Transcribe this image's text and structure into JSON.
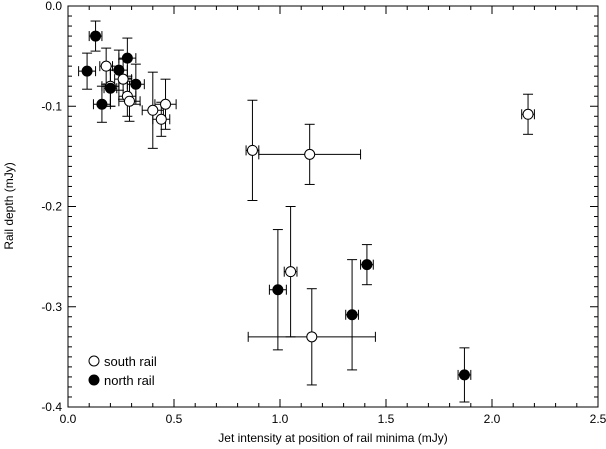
{
  "chart_data": {
    "type": "scatter",
    "xlabel": "Jet intensity at position of rail minima (mJy)",
    "ylabel": "Rail depth (mJy)",
    "xlim": [
      0.0,
      2.5
    ],
    "ylim": [
      -0.4,
      0.0
    ],
    "xticks": [
      0.0,
      0.5,
      1.0,
      1.5,
      2.0,
      2.5
    ],
    "xtick_labels": [
      "0.0",
      "0.5",
      "1.0",
      "1.5",
      "2.0",
      "2.5"
    ],
    "yticks": [
      0.0,
      -0.1,
      -0.2,
      -0.3,
      -0.4
    ],
    "ytick_labels": [
      "0.0",
      "-0.1",
      "-0.2",
      "-0.3",
      "-0.4"
    ],
    "grid": false,
    "legend_position": "bottom-left",
    "series": [
      {
        "name": "south rail",
        "marker": "open-circle",
        "points": [
          {
            "x": 0.18,
            "y": -0.06,
            "xerr": 0.03,
            "yerr": 0.018
          },
          {
            "x": 0.2,
            "y": -0.08,
            "xerr": 0.04,
            "yerr": 0.02
          },
          {
            "x": 0.26,
            "y": -0.073,
            "xerr": 0.04,
            "yerr": 0.02
          },
          {
            "x": 0.28,
            "y": -0.09,
            "xerr": 0.04,
            "yerr": 0.02
          },
          {
            "x": 0.29,
            "y": -0.095,
            "xerr": 0.05,
            "yerr": 0.02
          },
          {
            "x": 0.4,
            "y": -0.104,
            "xerr": 0.05,
            "yerr": 0.038
          },
          {
            "x": 0.44,
            "y": -0.113,
            "xerr": 0.04,
            "yerr": 0.017
          },
          {
            "x": 0.46,
            "y": -0.098,
            "xerr": 0.05,
            "yerr": 0.025
          },
          {
            "x": 0.87,
            "y": -0.144,
            "xerr": 0.03,
            "yerr": 0.05
          },
          {
            "x": 1.14,
            "y": -0.148,
            "xerr": 0.24,
            "yerr": 0.03
          },
          {
            "x": 1.05,
            "y": -0.265,
            "xerr": 0.03,
            "yerr": 0.065
          },
          {
            "x": 1.15,
            "y": -0.33,
            "xerr": 0.3,
            "yerr": 0.048
          },
          {
            "x": 2.17,
            "y": -0.108,
            "xerr": 0.03,
            "yerr": 0.02
          }
        ]
      },
      {
        "name": "north rail",
        "marker": "filled-circle",
        "points": [
          {
            "x": 0.09,
            "y": -0.065,
            "xerr": 0.04,
            "yerr": 0.018
          },
          {
            "x": 0.13,
            "y": -0.03,
            "xerr": 0.03,
            "yerr": 0.015
          },
          {
            "x": 0.16,
            "y": -0.098,
            "xerr": 0.04,
            "yerr": 0.018
          },
          {
            "x": 0.2,
            "y": -0.082,
            "xerr": 0.03,
            "yerr": 0.018
          },
          {
            "x": 0.24,
            "y": -0.064,
            "xerr": 0.04,
            "yerr": 0.02
          },
          {
            "x": 0.28,
            "y": -0.052,
            "xerr": 0.04,
            "yerr": 0.02
          },
          {
            "x": 0.32,
            "y": -0.078,
            "xerr": 0.04,
            "yerr": 0.02
          },
          {
            "x": 0.99,
            "y": -0.283,
            "xerr": 0.04,
            "yerr": 0.06
          },
          {
            "x": 1.34,
            "y": -0.308,
            "xerr": 0.03,
            "yerr": 0.055
          },
          {
            "x": 1.41,
            "y": -0.258,
            "xerr": 0.03,
            "yerr": 0.02
          },
          {
            "x": 1.87,
            "y": -0.368,
            "xerr": 0.03,
            "yerr": 0.027
          }
        ]
      }
    ]
  }
}
